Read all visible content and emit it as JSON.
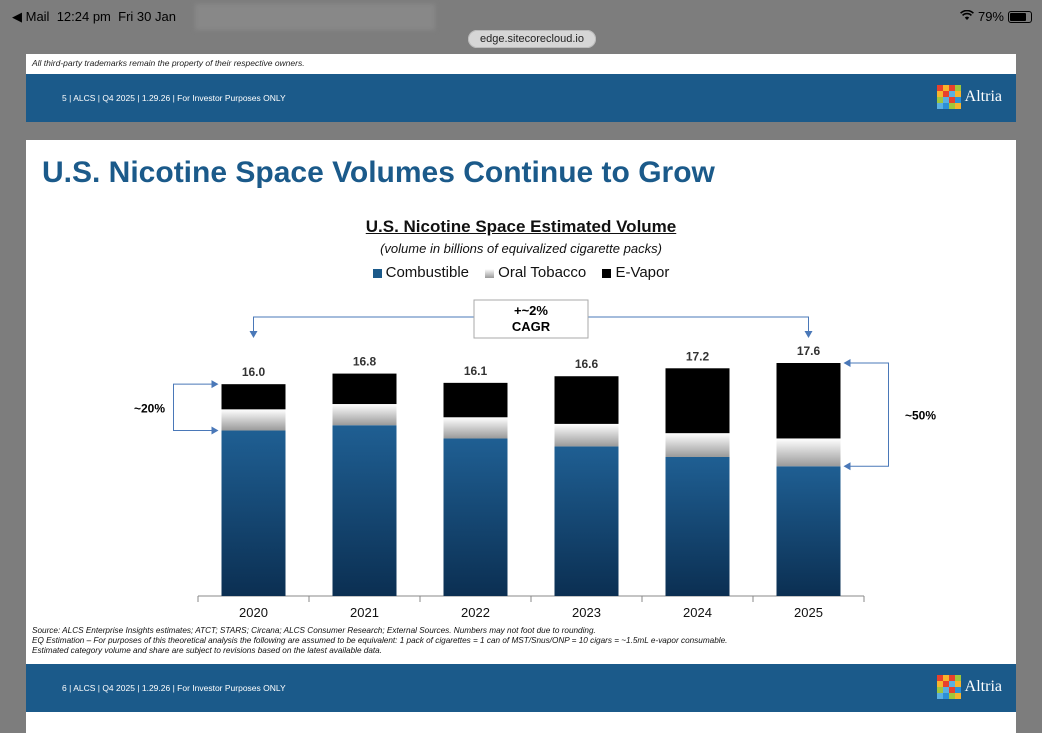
{
  "status": {
    "back_app": "◀ Mail",
    "time": "12:24 pm",
    "date": "Fri 30 Jan",
    "battery": "79%",
    "url": "edge.sitecorecloud.io"
  },
  "slide5": {
    "trademark": "All third-party trademarks remain the property of their respective owners.",
    "footer": "5 | ALCS | Q4 2025 | 1.29.26 | For Investor Purposes ONLY",
    "logo_text": "Altria"
  },
  "slide6": {
    "title": "U.S. Nicotine Space Volumes Continue to Grow",
    "footer": "6 | ALCS | Q4 2025 | 1.29.26 | For Investor Purposes ONLY",
    "logo_text": "Altria",
    "notes": [
      "Source: ALCS Enterprise Insights estimates; ATCT; STARS; Circana; ALCS Consumer Research; External Sources. Numbers may not foot due to rounding.",
      "EQ Estimation – For purposes of this theoretical analysis the following are assumed to be equivalent: 1 pack of cigarettes = 1 can of MST/Snus/ONP = 10 cigars = ~1.5mL e-vapor consumable.",
      "Estimated category volume and share are subject to revisions based on the latest available data."
    ]
  },
  "chart_data": {
    "type": "bar",
    "stacked": true,
    "title": "U.S. Nicotine Space Estimated Volume",
    "subtitle": "(volume in billions of equivalized cigarette packs)",
    "categories": [
      "2020",
      "2021",
      "2022",
      "2023",
      "2024",
      "2025"
    ],
    "totals": [
      "16.0",
      "16.8",
      "16.1",
      "16.6",
      "17.2",
      "17.6"
    ],
    "series": [
      {
        "name": "Combustible",
        "values": [
          12.5,
          12.9,
          11.9,
          11.3,
          10.5,
          9.8
        ],
        "color": "#1b5a8a"
      },
      {
        "name": "Oral Tobacco",
        "values": [
          1.6,
          1.6,
          1.6,
          1.7,
          1.8,
          2.1
        ],
        "color": "#d9d9d9"
      },
      {
        "name": "E-Vapor",
        "values": [
          1.9,
          2.3,
          2.6,
          3.6,
          4.9,
          5.7
        ],
        "color": "#000000"
      }
    ],
    "ylim": [
      0,
      17.6
    ],
    "legend_position": "top-center",
    "annotations": {
      "cagr": "+~2%",
      "cagr_label": "CAGR",
      "left_share": "~20%",
      "right_share": "~50%"
    }
  }
}
